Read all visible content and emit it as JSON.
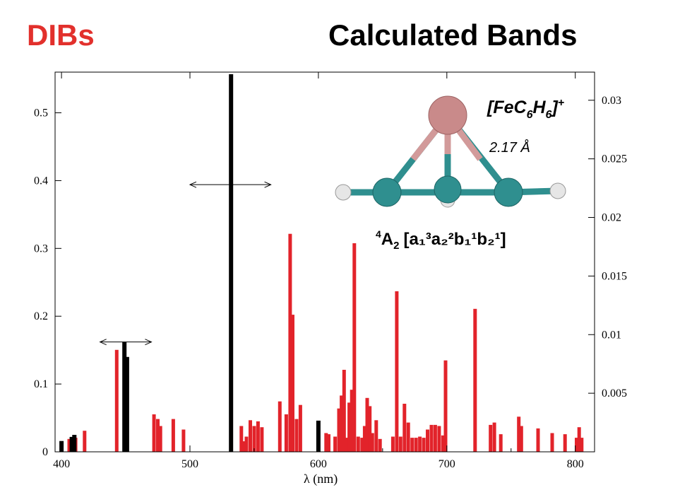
{
  "header": {
    "left_title": "DIBs",
    "right_title": "Calculated Bands"
  },
  "molecule": {
    "formula_main": "[FeC",
    "formula_sub1": "6",
    "formula_h": "H",
    "formula_sub2": "6",
    "formula_close": "]",
    "formula_sup": "+",
    "bond_length": "2.17 Å",
    "state_sup": "4",
    "state_main": "A",
    "state_sub": "2",
    "config": "[a₁³a₂²b₁¹b₂¹]",
    "colors": {
      "iron": "#c98a8a",
      "carbon": "#2f8f8f",
      "hydrogen": "#e6e6e6"
    }
  },
  "chart_data": {
    "type": "bar",
    "xlabel": "λ  (nm)",
    "xlim": [
      395,
      815
    ],
    "ylim_left": [
      0,
      0.56
    ],
    "ylim_right": [
      0,
      0.0324
    ],
    "x_ticks": [
      400,
      500,
      600,
      700,
      800
    ],
    "y_ticks_left": [
      0,
      0.1,
      0.2,
      0.3,
      0.4,
      0.5
    ],
    "y_ticks_right": [
      0.005,
      0.01,
      0.015,
      0.02,
      0.025,
      0.03
    ],
    "x_tick_labels": [
      "400",
      "500",
      "600",
      "700",
      "800"
    ],
    "y_tick_labels_left": [
      "0",
      "0.1",
      "0.2",
      "0.3",
      "0.4",
      "0.5"
    ],
    "y_tick_labels_right": [
      "0.005",
      "0.01",
      "0.015",
      "0.02",
      "0.025",
      "0.03"
    ],
    "series": [
      {
        "color": "#000000",
        "axis": "left",
        "points": [
          [
            400,
            0.016
          ],
          [
            408,
            0.022
          ],
          [
            410,
            0.025
          ],
          [
            449,
            0.162
          ],
          [
            451,
            0.14
          ],
          [
            532,
            0.557
          ],
          [
            600,
            0.046
          ]
        ]
      },
      {
        "color": "#e2232a",
        "axis": "right",
        "points": [
          [
            406,
            0.0011
          ],
          [
            408,
            0.0012
          ],
          [
            411,
            0.0012
          ],
          [
            418,
            0.0018
          ],
          [
            443,
            0.0087
          ],
          [
            450,
            0.0038
          ],
          [
            472,
            0.0032
          ],
          [
            475,
            0.0028
          ],
          [
            477,
            0.0022
          ],
          [
            487,
            0.0028
          ],
          [
            495,
            0.0019
          ],
          [
            540,
            0.0022
          ],
          [
            542,
            0.0009
          ],
          [
            544,
            0.0013
          ],
          [
            547,
            0.0027
          ],
          [
            550,
            0.0022
          ],
          [
            553,
            0.0026
          ],
          [
            556,
            0.0021
          ],
          [
            570,
            0.0043
          ],
          [
            575,
            0.0032
          ],
          [
            578,
            0.0186
          ],
          [
            580,
            0.0117
          ],
          [
            583,
            0.0028
          ],
          [
            586,
            0.004
          ],
          [
            600,
            0.0026
          ],
          [
            606,
            0.0016
          ],
          [
            608,
            0.0015
          ],
          [
            613,
            0.0013
          ],
          [
            616,
            0.0037
          ],
          [
            618,
            0.0048
          ],
          [
            620,
            0.007
          ],
          [
            622,
            0.0012
          ],
          [
            624,
            0.0042
          ],
          [
            626,
            0.0053
          ],
          [
            628,
            0.0178
          ],
          [
            631,
            0.0013
          ],
          [
            634,
            0.0012
          ],
          [
            636,
            0.0022
          ],
          [
            638,
            0.0046
          ],
          [
            640,
            0.0039
          ],
          [
            642,
            0.0016
          ],
          [
            645,
            0.0027
          ],
          [
            648,
            0.0011
          ],
          [
            658,
            0.0013
          ],
          [
            661,
            0.0137
          ],
          [
            664,
            0.0013
          ],
          [
            667,
            0.0041
          ],
          [
            670,
            0.0025
          ],
          [
            673,
            0.0012
          ],
          [
            676,
            0.0012
          ],
          [
            679,
            0.0013
          ],
          [
            682,
            0.0012
          ],
          [
            685,
            0.0019
          ],
          [
            688,
            0.0023
          ],
          [
            691,
            0.0023
          ],
          [
            694,
            0.0022
          ],
          [
            697,
            0.0014
          ],
          [
            699,
            0.0078
          ],
          [
            722,
            0.0122
          ],
          [
            734,
            0.0023
          ],
          [
            737,
            0.0025
          ],
          [
            742,
            0.0015
          ],
          [
            756,
            0.003
          ],
          [
            758,
            0.0022
          ],
          [
            771,
            0.002
          ],
          [
            782,
            0.0016
          ],
          [
            792,
            0.0015
          ],
          [
            801,
            0.0012
          ],
          [
            803,
            0.0021
          ],
          [
            805,
            0.0012
          ]
        ]
      }
    ],
    "annotations": [
      {
        "type": "double-arrow",
        "x1": 430,
        "x2": 470,
        "y_left": 0.162
      },
      {
        "type": "double-arrow",
        "x1": 500,
        "x2": 563,
        "y_left": 0.394
      }
    ]
  }
}
